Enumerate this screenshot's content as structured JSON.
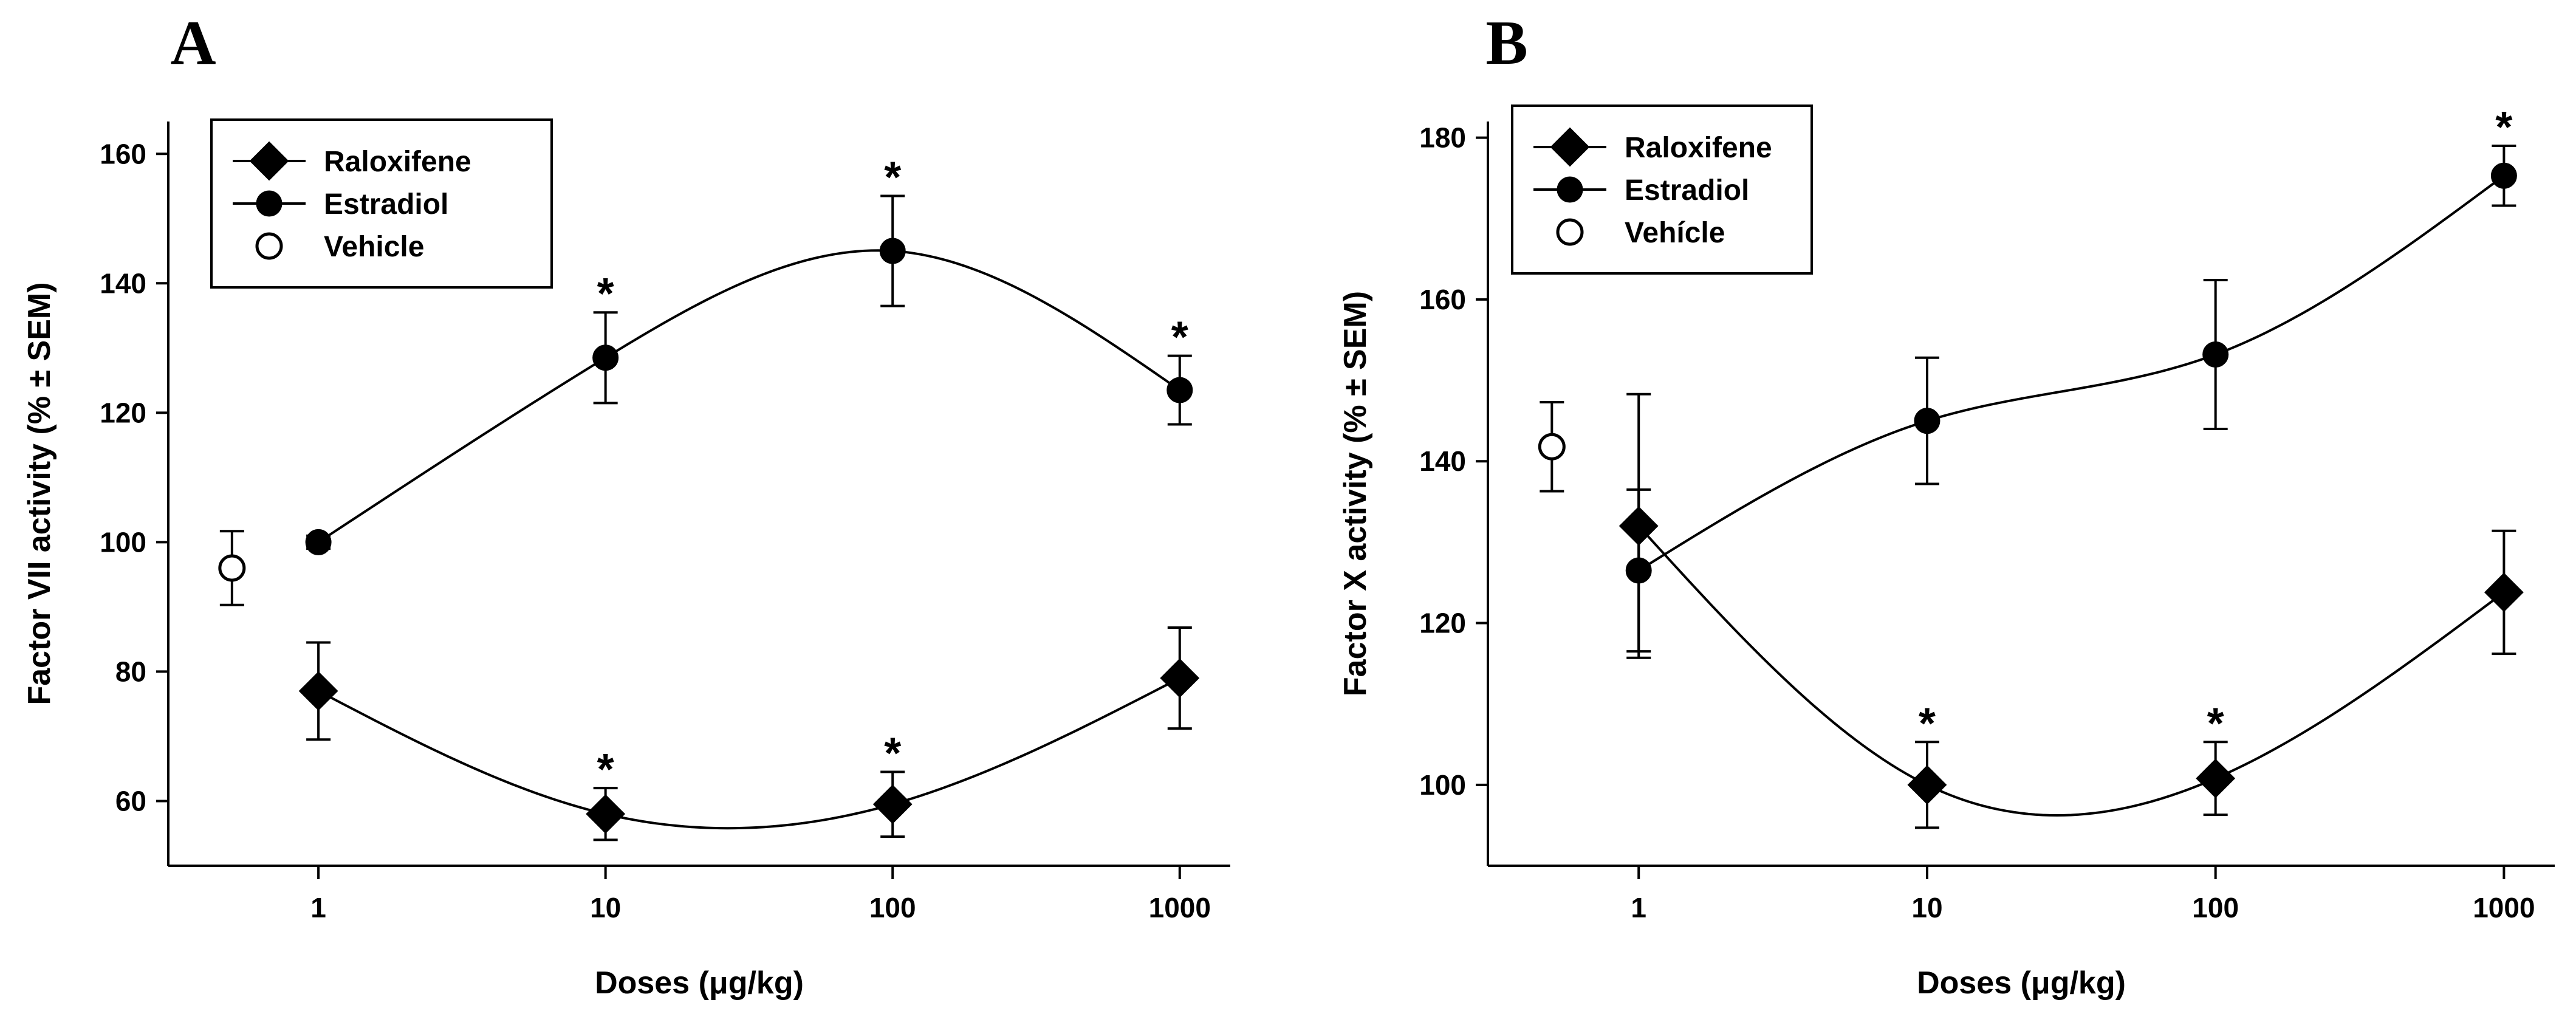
{
  "colors": {
    "ink": "#000000",
    "background": "#ffffff",
    "open_marker_fill": "#ffffff"
  },
  "chart_data": [
    {
      "type": "line",
      "panel_label": "A",
      "xlabel": "Doses (μg/kg)",
      "ylabel": "Factor VII activity (% ± SEM)",
      "x_scale": "log",
      "xlim": [
        0.3,
        1500
      ],
      "ylim": [
        50,
        165
      ],
      "x_ticks": [
        1,
        10,
        100,
        1000
      ],
      "x_tick_labels": [
        "1",
        "10",
        "100",
        "1000"
      ],
      "y_ticks": [
        60,
        80,
        100,
        120,
        140,
        160
      ],
      "y_tick_labels": [
        "60",
        "80",
        "100",
        "120",
        "140",
        "160"
      ],
      "grid": false,
      "legend_position": "top-left",
      "series": [
        {
          "name": "Raloxifene",
          "marker": "filled-diamond",
          "x": [
            1,
            10,
            100,
            1000
          ],
          "y": [
            77,
            58,
            59.5,
            79
          ],
          "error": [
            7.5,
            4,
            5,
            7.8
          ],
          "significant": [
            false,
            true,
            true,
            false
          ],
          "smooth_curve": true
        },
        {
          "name": "Estradiol",
          "marker": "filled-circle",
          "x": [
            1,
            10,
            100,
            1000
          ],
          "y": [
            100,
            128.5,
            145,
            123.5
          ],
          "error": [
            1,
            7,
            8.5,
            5.3
          ],
          "significant": [
            false,
            true,
            true,
            true
          ],
          "smooth_curve": true
        },
        {
          "name": "Vehicle",
          "marker": "open-circle",
          "x": [
            0.5
          ],
          "y": [
            96
          ],
          "error": [
            5.7
          ],
          "significant": [
            false
          ],
          "smooth_curve": false
        }
      ],
      "significance_marker": "*"
    },
    {
      "type": "line",
      "panel_label": "B",
      "xlabel": "Doses (μg/kg)",
      "ylabel": "Factor X activity (% ± SEM)",
      "x_scale": "log",
      "xlim": [
        0.3,
        1500
      ],
      "ylim": [
        90,
        182
      ],
      "x_ticks": [
        1,
        10,
        100,
        1000
      ],
      "x_tick_labels": [
        "1",
        "10",
        "100",
        "1000"
      ],
      "y_ticks": [
        100,
        120,
        140,
        160,
        180
      ],
      "y_tick_labels": [
        "100",
        "120",
        "140",
        "160",
        "180"
      ],
      "grid": false,
      "legend_position": "top-left",
      "series": [
        {
          "name": "Raloxifene",
          "marker": "filled-diamond",
          "x": [
            1,
            10,
            100,
            1000
          ],
          "y": [
            132,
            100,
            100.8,
            123.8
          ],
          "error": [
            16.3,
            5.3,
            4.5,
            7.6
          ],
          "significant": [
            false,
            true,
            true,
            false
          ],
          "smooth_curve": true
        },
        {
          "name": "Estradiol",
          "marker": "filled-circle",
          "x": [
            1,
            10,
            100,
            1000
          ],
          "y": [
            126.5,
            145,
            153.2,
            175.3
          ],
          "error": [
            10,
            7.8,
            9.2,
            3.7
          ],
          "significant": [
            false,
            false,
            false,
            true
          ],
          "smooth_curve": true
        },
        {
          "name": "Vehícle",
          "marker": "open-circle",
          "x": [
            0.5
          ],
          "y": [
            141.8
          ],
          "error": [
            5.5
          ],
          "significant": [
            false
          ],
          "smooth_curve": false
        }
      ],
      "significance_marker": "*"
    }
  ]
}
